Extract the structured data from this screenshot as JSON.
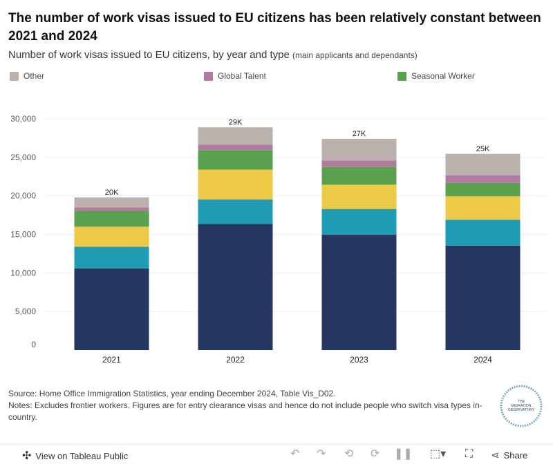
{
  "header": {
    "title": "The number of work visas issued to EU citizens has been relatively constant between 2021 and 2024",
    "subtitle": "Number of work visas issued to EU citizens, by year and type",
    "subtitle_note": "(main applicants and dependants)"
  },
  "legend": [
    {
      "label": "Other",
      "color": "#bab0ac"
    },
    {
      "label": "Global Talent",
      "color": "#b07aa1"
    },
    {
      "label": "Seasonal Worker",
      "color": "#59a14f"
    }
  ],
  "chart_data": {
    "type": "bar",
    "stacked": true,
    "categories": [
      "2021",
      "2022",
      "2023",
      "2024"
    ],
    "series": [
      {
        "values": [
          10600,
          16350,
          14950,
          13550
        ],
        "color": "#253760"
      },
      {
        "values": [
          2800,
          3200,
          3350,
          3350
        ],
        "color": "#1f9bb4"
      },
      {
        "values": [
          2600,
          3850,
          3150,
          3050
        ],
        "color": "#edc948"
      },
      {
        "values": [
          2000,
          2500,
          2300,
          1750
        ],
        "color": "#59a14f"
      },
      {
        "name": "Global Talent",
        "values": [
          500,
          750,
          850,
          950
        ],
        "color": "#b07aa1"
      },
      {
        "name": "Other",
        "values": [
          1300,
          2250,
          2800,
          2800
        ],
        "color": "#bab0ac"
      }
    ],
    "total_labels": [
      "20K",
      "29K",
      "27K",
      "25K"
    ],
    "yticks": [
      "0",
      "5,000",
      "10,000",
      "15,000",
      "20,000",
      "25,000",
      "30,000"
    ],
    "ylim": [
      0,
      30000
    ],
    "grid": true
  },
  "footer": {
    "source": "Source: Home Office Immigration Statistics, year ending December 2024, Table Vis_D02.",
    "notes": "Notes: Excludes frontier workers. Figures are for entry clearance visas and hence do not include people who switch visa types in-country."
  },
  "logo": {
    "line1": "THE",
    "line2": "MIGRATION",
    "line3": "OBSERVATORY"
  },
  "toolbar": {
    "view_label": "View on Tableau Public",
    "share_label": "Share",
    "icons": [
      "tableau-icon",
      "undo-icon",
      "redo-icon",
      "revert-icon",
      "refresh-icon",
      "pause-icon",
      "download-icon",
      "fullscreen-icon",
      "share-icon"
    ]
  }
}
